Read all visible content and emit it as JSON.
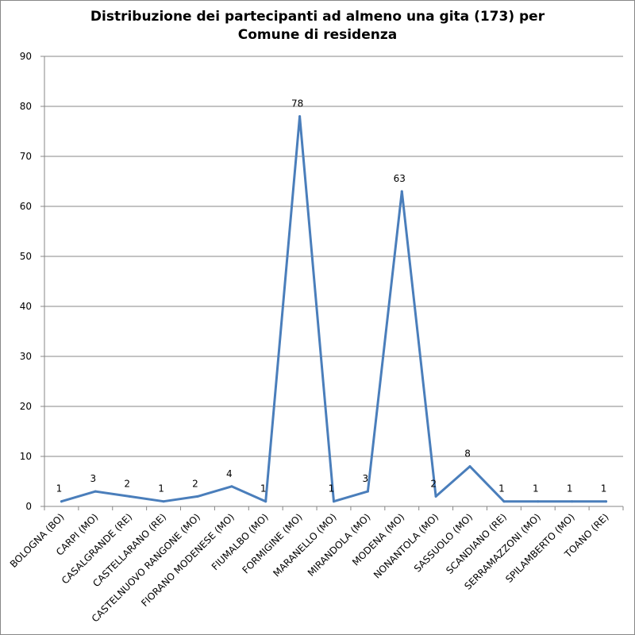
{
  "chart_data": {
    "type": "line",
    "title_line1": "Distribuzione dei partecipanti ad almeno una gita (173) per",
    "title_line2": "Comune di residenza",
    "categories": [
      "BOLOGNA (BO)",
      "CARPI (MO)",
      "CASALGRANDE (RE)",
      "CASTELLARANO (RE)",
      "CASTELNUOVO RANGONE (MO)",
      "FIORANO MODENESE (MO)",
      "FIUMALBO (MO)",
      "FORMIGINE (MO)",
      "MARANELLO (MO)",
      "MIRANDOLA (MO)",
      "MODENA (MO)",
      "NONANTOLA (MO)",
      "SASSUOLO (MO)",
      "SCANDIANO (RE)",
      "SERRAMAZZONI (MO)",
      "SPILAMBERTO (MO)",
      "TOANO (RE)"
    ],
    "values": [
      1,
      3,
      2,
      1,
      2,
      4,
      1,
      78,
      1,
      3,
      63,
      2,
      8,
      1,
      1,
      1,
      1
    ],
    "ylim": [
      0,
      90
    ],
    "yticks": [
      "0",
      "10",
      "20",
      "30",
      "40",
      "50",
      "60",
      "70",
      "80",
      "90"
    ],
    "grid": true,
    "legend": "none",
    "line_color": "#4a7ebb"
  }
}
